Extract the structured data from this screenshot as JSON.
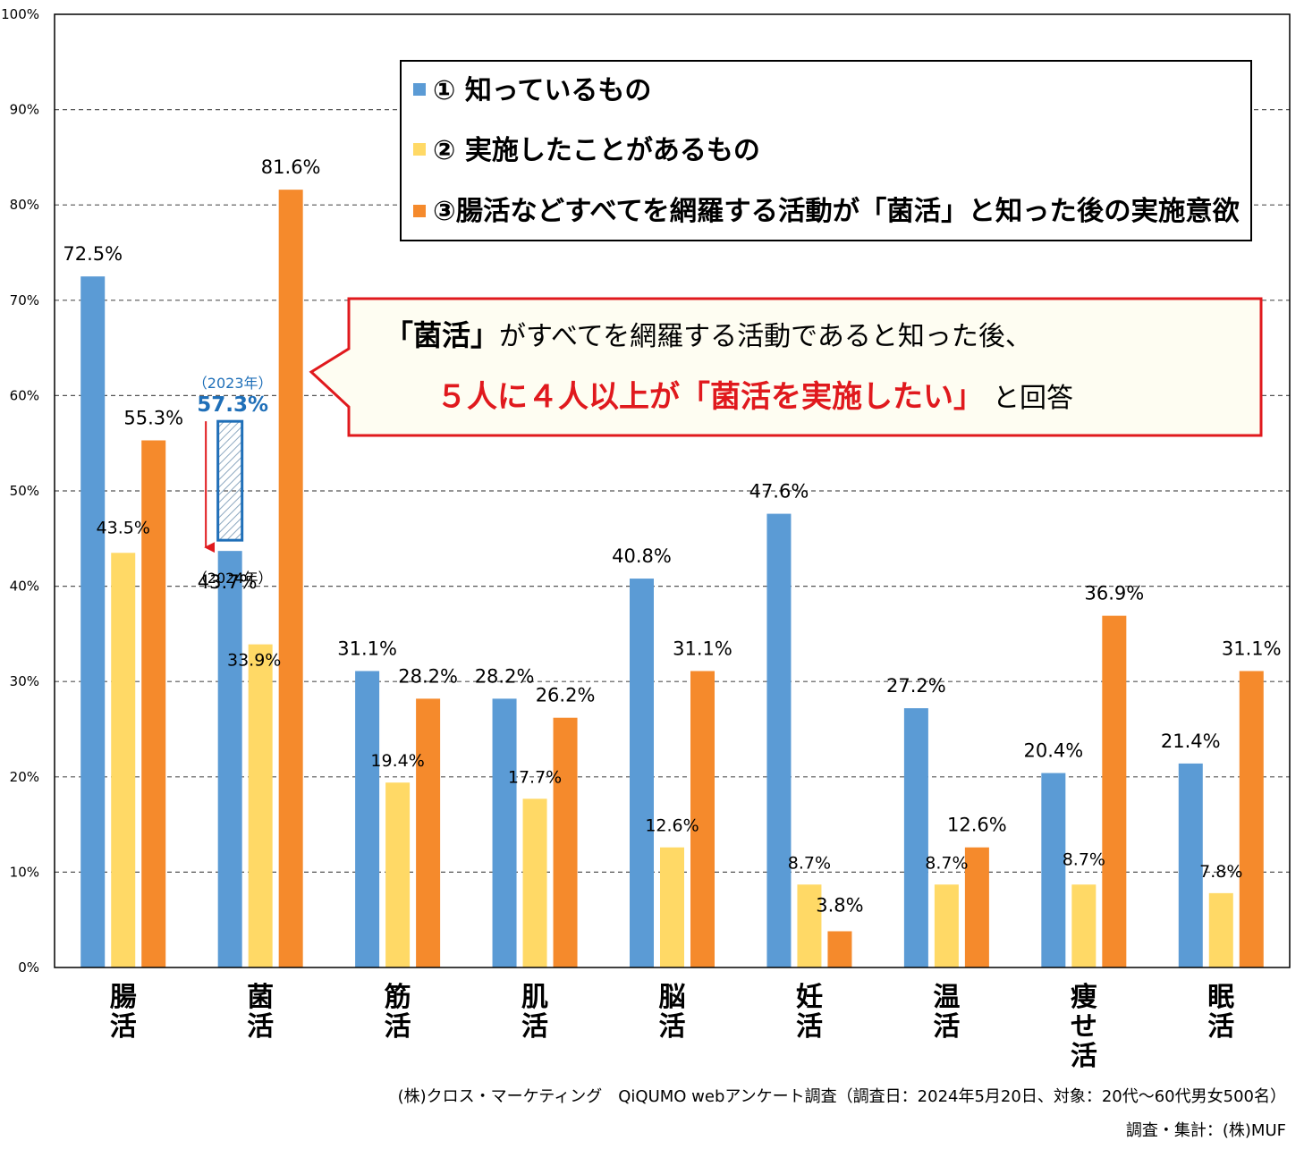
{
  "chart_data": {
    "type": "bar",
    "categories": [
      "腸活",
      "菌活",
      "筋活",
      "肌活",
      "脳活",
      "妊活",
      "温活",
      "痩せ活",
      "眠活"
    ],
    "series": [
      {
        "name": "① 知っているもの",
        "color": "#5b9bd5",
        "values": [
          72.5,
          43.7,
          31.1,
          28.2,
          40.8,
          47.6,
          27.2,
          20.4,
          21.4
        ],
        "labels": [
          "72.5%",
          "43.7%",
          "31.1%",
          "28.2%",
          "40.8%",
          "47.6%",
          "27.2%",
          "20.4%",
          "21.4%"
        ]
      },
      {
        "name": "② 実施したことがあるもの",
        "color": "#ffd966",
        "values": [
          43.5,
          33.9,
          19.4,
          17.7,
          12.6,
          8.7,
          8.7,
          8.7,
          7.8
        ],
        "labels": [
          "43.5%",
          "33.9%",
          "19.4%",
          "17.7%",
          "12.6%",
          "8.7%",
          "8.7%",
          "8.7%",
          "7.8%"
        ]
      },
      {
        "name": "③腸活などすべてを網羅する活動が「菌活」と知った後の実施意欲",
        "color": "#f58a2c",
        "values": [
          55.3,
          81.6,
          28.2,
          26.2,
          31.1,
          3.8,
          12.6,
          36.9,
          31.1
        ],
        "labels": [
          "55.3%",
          "81.6%",
          "28.2%",
          "26.2%",
          "31.1%",
          "3.8%",
          "12.6%",
          "36.9%",
          "31.1%"
        ]
      }
    ],
    "ylim": [
      0,
      100
    ],
    "yticks": [
      "0%",
      "10%",
      "20%",
      "30%",
      "40%",
      "50%",
      "60%",
      "70%",
      "80%",
      "90%",
      "100%"
    ],
    "grid": "dashed horizontal",
    "legend_position": "top-right",
    "annotation": {
      "category": "菌活",
      "previous_year_label": "（2023年）",
      "previous_value": 57.3,
      "previous_value_label": "57.3%",
      "current_year_label": "（2024年）"
    }
  },
  "callout": {
    "line1_bracket_open": "「",
    "line1_bold": "菌活",
    "line1_bracket_close": "」",
    "line1_rest": "がすべてを網羅する活動であると知った後、",
    "line2_red": "５人に４人以上が「菌活を実施したい」",
    "line2_rest": "と回答"
  },
  "source": {
    "line1": "(株)クロス・マーケティング　QiQUMO webアンケート調査（調査日：2024年5月20日、対象：20代～60代男女500名）",
    "line2": "調査・集計：(株)MUF"
  },
  "colors": {
    "axis": "#000000",
    "grid": "#555555",
    "callout_border": "#e0191d",
    "callout_fill": "#fefdf2",
    "arrow": "#e0191d",
    "annotation": "#1f6fb8"
  }
}
